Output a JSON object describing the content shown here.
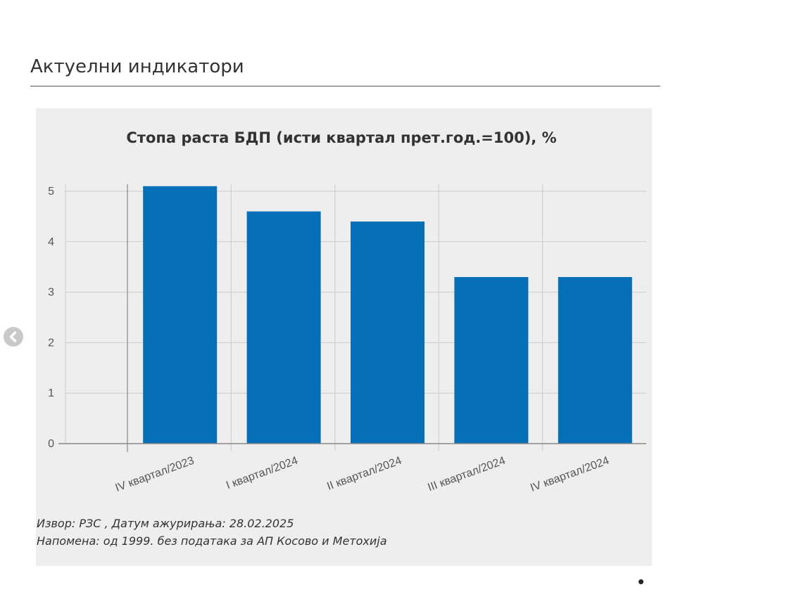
{
  "section": {
    "title": "Актуелни индикатори"
  },
  "carousel": {
    "prev_icon": "chevron-left-circle-icon"
  },
  "chart_data": {
    "type": "bar",
    "title": "Стопа раста БДП (исти квартал прет.год.=100), %",
    "categories": [
      "IV квартал/2023",
      "I квартал/2024",
      "II квартал/2024",
      "III квартал/2024",
      "IV квартал/2024"
    ],
    "values": [
      5.1,
      4.6,
      4.4,
      3.3,
      3.3
    ],
    "ylim": [
      0,
      5
    ],
    "yticks": [
      "0",
      "1",
      "2",
      "3",
      "4",
      "5"
    ],
    "xlabel": "",
    "ylabel": "",
    "grid": true,
    "bar_color": "#0570b8"
  },
  "notes": {
    "source": "Извор: РЗС , Датум ажурирања: 28.02.2025",
    "remark": "Напомена: од 1999. без података за АП Косово и Метохија"
  }
}
